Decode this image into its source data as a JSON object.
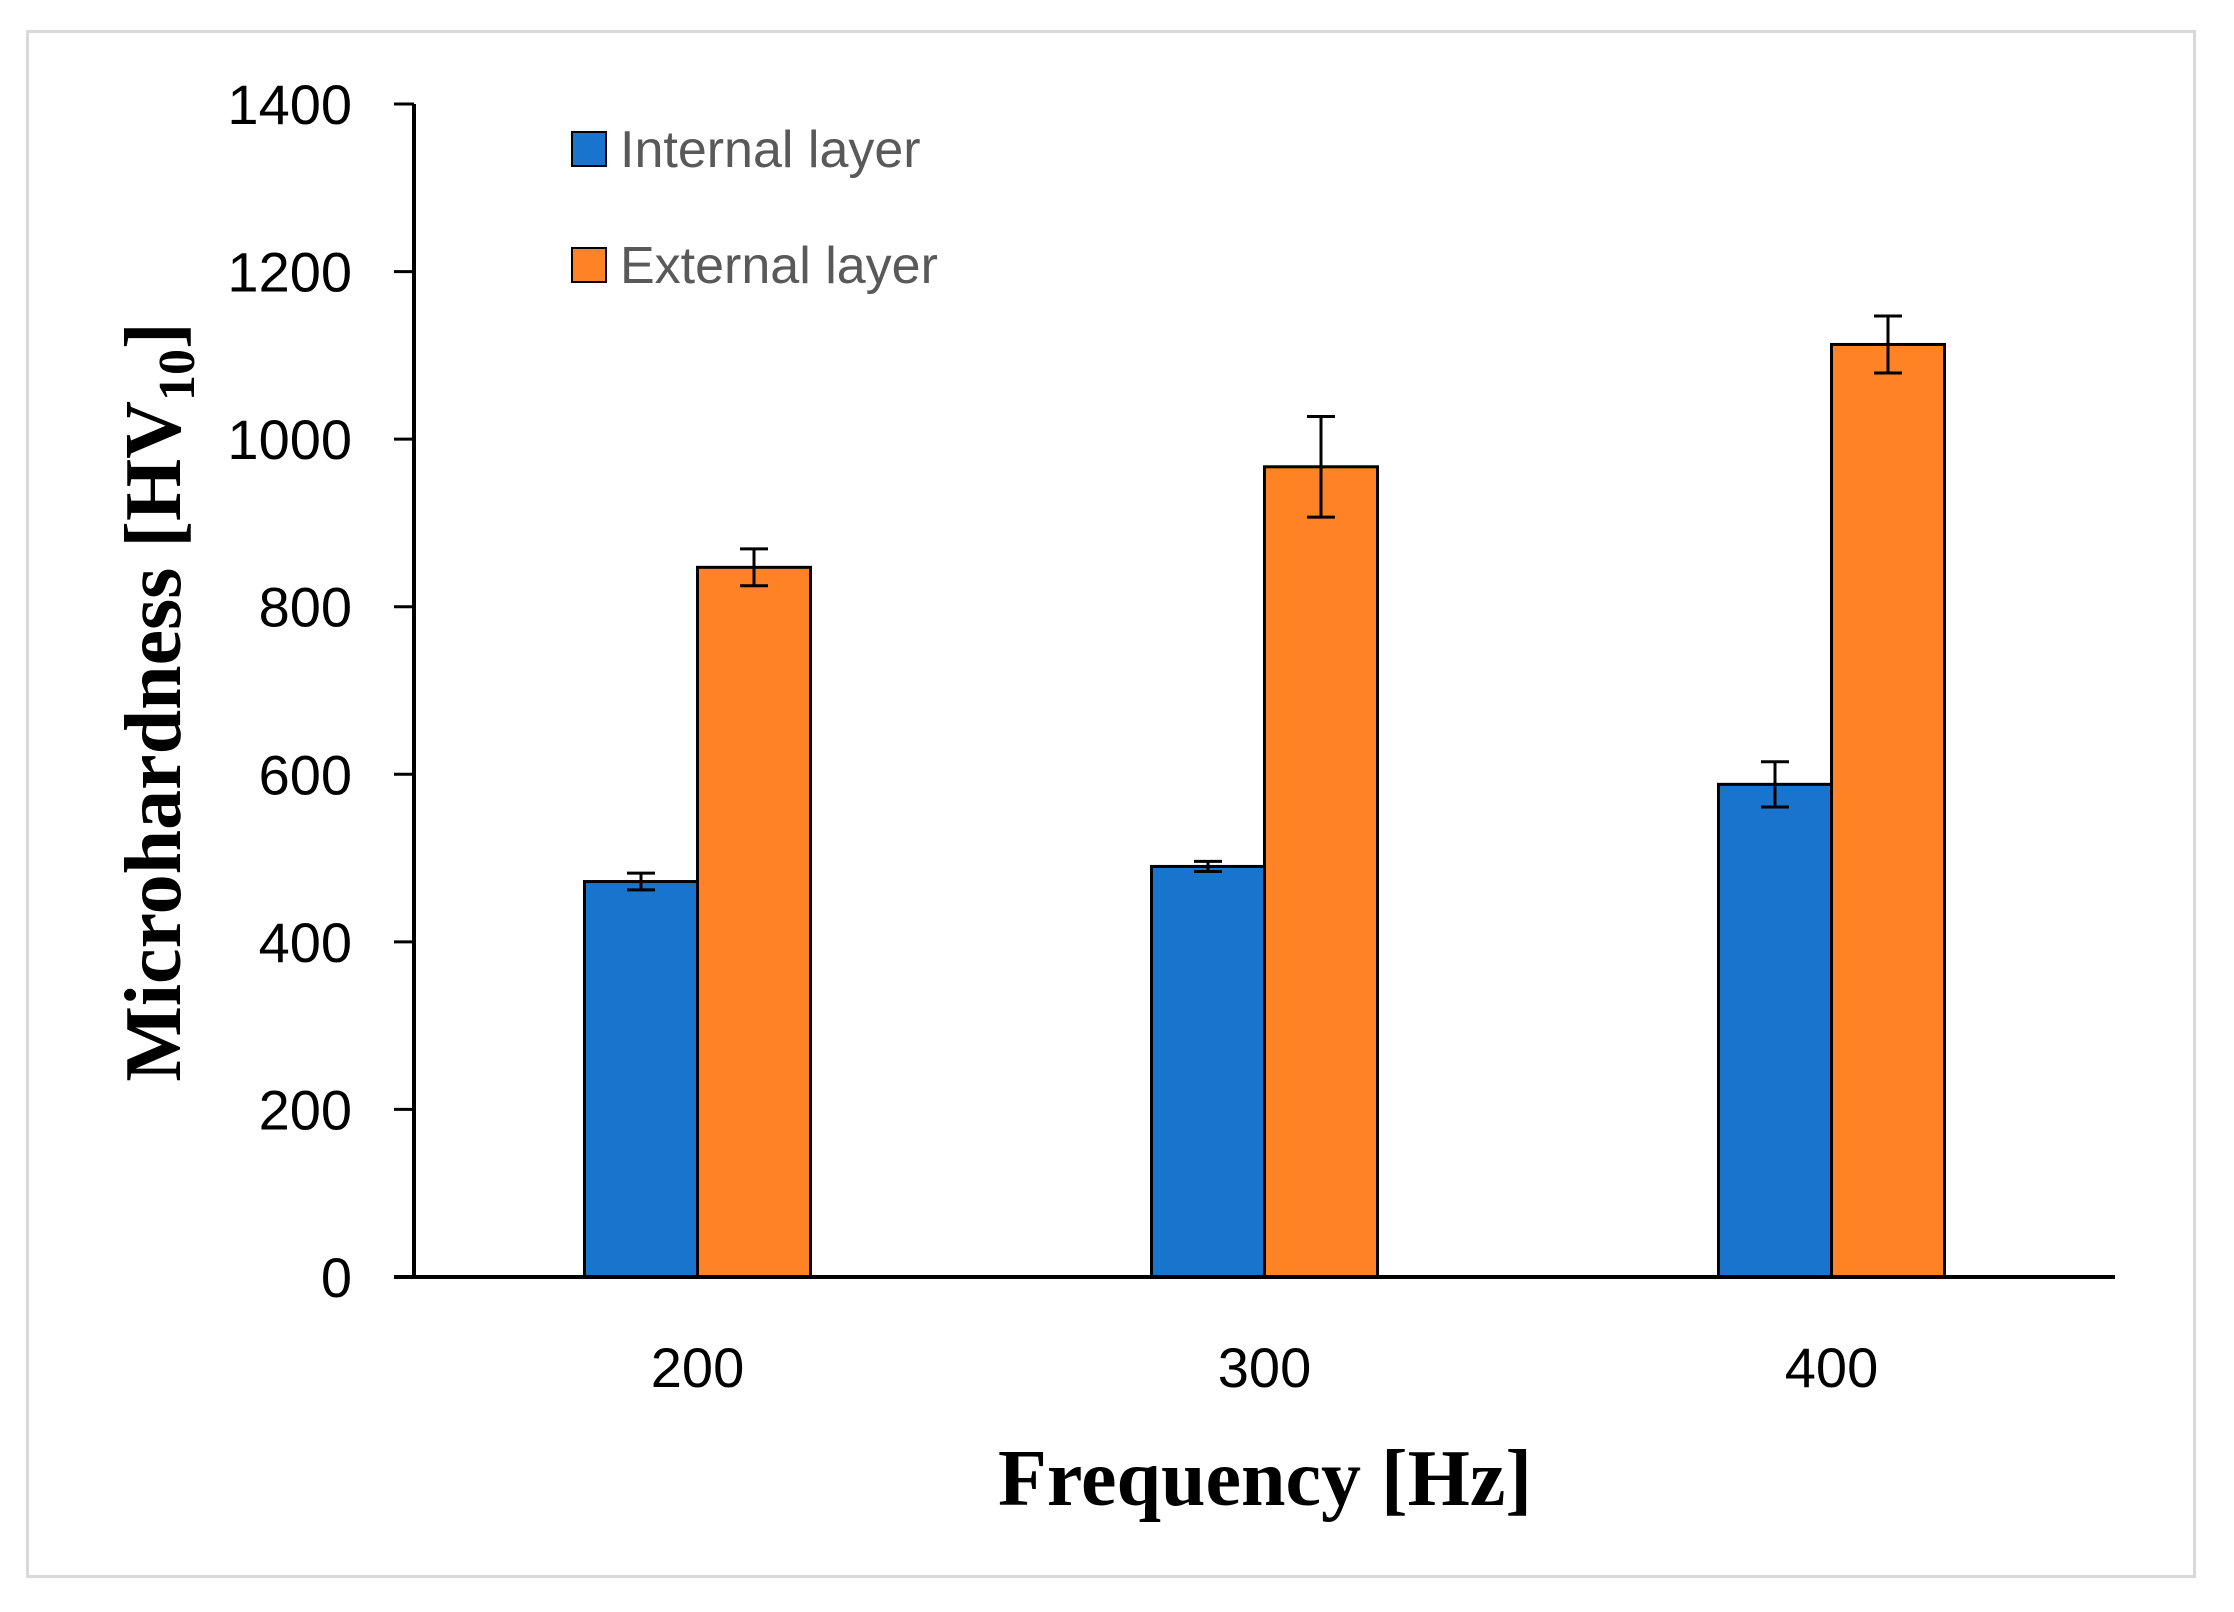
{
  "chart_data": {
    "type": "bar",
    "title": "",
    "xlabel": "Frequency [Hz]",
    "ylabel": {
      "main": "Microhardness [HV",
      "subscript": "10",
      "close": "]"
    },
    "categories": [
      "200",
      "300",
      "400"
    ],
    "ylim": [
      0,
      1400
    ],
    "yticks": [
      0,
      200,
      400,
      600,
      800,
      1000,
      1200,
      1400
    ],
    "grid": false,
    "legend_position": "top-left",
    "series": [
      {
        "name": "Internal layer",
        "color": "#1874CD",
        "values": [
          472,
          490,
          588
        ],
        "errors": [
          10,
          6,
          27
        ]
      },
      {
        "name": "External layer",
        "color": "#FF8225",
        "values": [
          847,
          967,
          1113
        ],
        "errors": [
          22,
          60,
          34
        ]
      }
    ]
  }
}
